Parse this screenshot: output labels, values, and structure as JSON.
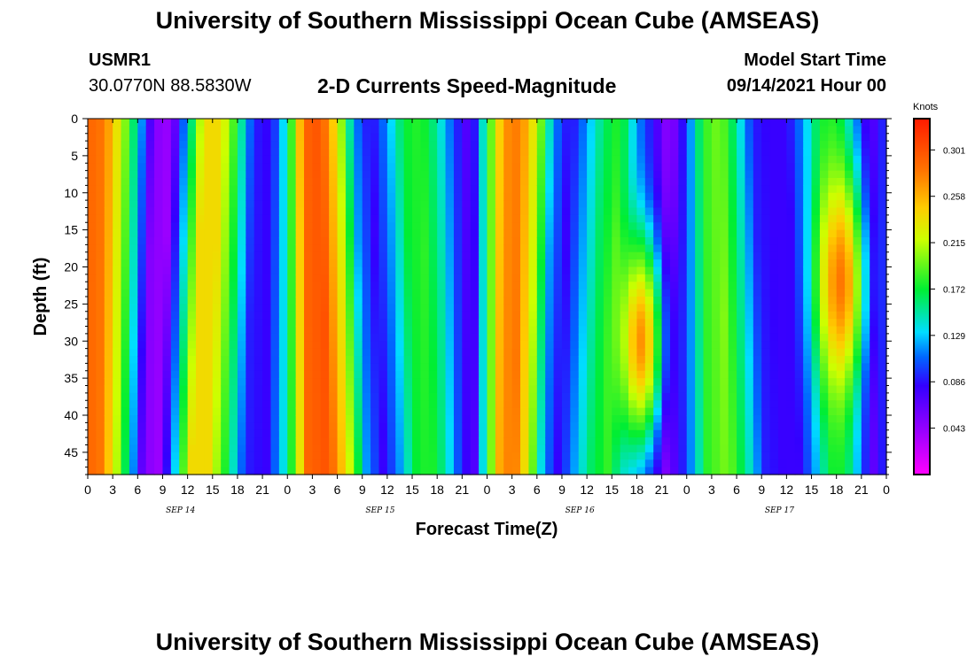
{
  "page": {
    "title_top": "University of Southern Mississippi Ocean Cube (AMSEAS)",
    "title_bottom": "University of Southern Mississippi Ocean Cube (AMSEAS)",
    "station": "USMR1",
    "coords": "30.0770N  88.5830W",
    "subtitle": "2-D Currents Speed-Magnitude",
    "model_start_label": "Model Start Time",
    "model_start_value": "09/14/2021 Hour 00"
  },
  "chart_data": {
    "type": "heatmap",
    "title": "2-D Currents Speed-Magnitude",
    "xlabel": "Forecast Time(Z)",
    "ylabel": "Depth (ft)",
    "x_range_hours": [
      0,
      96
    ],
    "y_range_ft": [
      0,
      48
    ],
    "x_tick_labels": [
      "0",
      "3",
      "6",
      "9",
      "12",
      "15",
      "18",
      "21",
      "0",
      "3",
      "6",
      "9",
      "12",
      "15",
      "18",
      "21",
      "0",
      "3",
      "6",
      "9",
      "12",
      "15",
      "18",
      "21",
      "0",
      "3",
      "6",
      "9",
      "12",
      "15",
      "18",
      "21",
      "0"
    ],
    "y_tick_labels": [
      "0",
      "5",
      "10",
      "15",
      "20",
      "25",
      "30",
      "35",
      "40",
      "45"
    ],
    "y_tick_values": [
      0,
      5,
      10,
      15,
      20,
      25,
      30,
      35,
      40,
      45
    ],
    "day_labels": [
      "SEP 14",
      "SEP 15",
      "SEP 16",
      "SEP 17"
    ],
    "colorbar": {
      "unit": "Knots",
      "ticks": [
        "0.301",
        "0.258",
        "0.215",
        "0.172",
        "0.129",
        "0.086",
        "0.043"
      ],
      "tick_values": [
        0.301,
        0.258,
        0.215,
        0.172,
        0.129,
        0.086,
        0.043
      ],
      "range": [
        0.0,
        0.33
      ]
    },
    "surface_speed_profile": {
      "hours": [
        0,
        2,
        4,
        6,
        8,
        10,
        12,
        14,
        16,
        18,
        20,
        22,
        24,
        26,
        28,
        30,
        32,
        34,
        36,
        38,
        40,
        42,
        44,
        46,
        48,
        50,
        52,
        54,
        56,
        58,
        60,
        62,
        64,
        66,
        68,
        70,
        72,
        74,
        76,
        78,
        80,
        82,
        84,
        86,
        88,
        90,
        92,
        94,
        96
      ],
      "speed_knots": [
        0.29,
        0.28,
        0.22,
        0.14,
        0.05,
        0.04,
        0.13,
        0.24,
        0.24,
        0.17,
        0.09,
        0.08,
        0.15,
        0.29,
        0.3,
        0.23,
        0.12,
        0.08,
        0.12,
        0.17,
        0.18,
        0.15,
        0.1,
        0.06,
        0.17,
        0.27,
        0.28,
        0.22,
        0.12,
        0.08,
        0.12,
        0.16,
        0.18,
        0.12,
        0.08,
        0.04,
        0.1,
        0.18,
        0.2,
        0.15,
        0.09,
        0.08,
        0.08,
        0.12,
        0.17,
        0.17,
        0.12,
        0.06,
        0.1
      ]
    },
    "features": [
      {
        "description": "deep maximum",
        "hours_center": 18.5,
        "depth_center_ft": 30,
        "speed_knots": 0.27,
        "day": "SEP 16"
      },
      {
        "description": "deep maximum",
        "hours_center": 18.5,
        "depth_center_ft": 22,
        "speed_knots": 0.28,
        "day": "SEP 17"
      }
    ]
  }
}
